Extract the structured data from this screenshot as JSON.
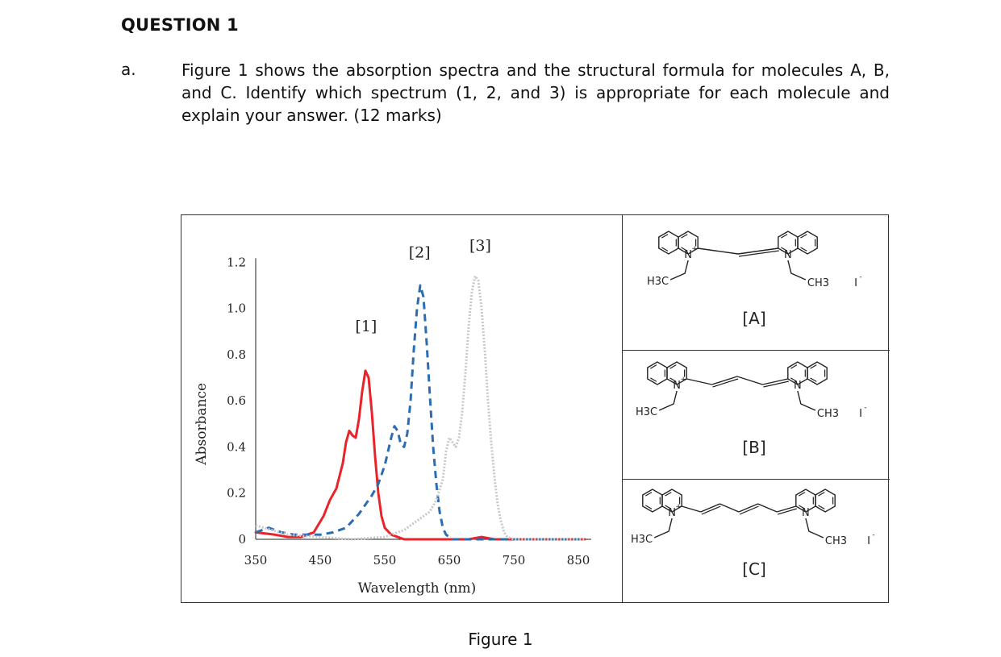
{
  "question": {
    "title": "QUESTION 1",
    "part_label": "a.",
    "text": "Figure 1 shows the absorption spectra and the structural formula for molecules A, B, and C. Identify which spectrum (1, 2, and 3) is appropriate for each molecule and explain your answer. (12 marks)"
  },
  "figure_caption": "Figure 1",
  "molecules": [
    {
      "label": "[A]",
      "left_sub": "H3C",
      "right_sub": "CH3",
      "counter_ion": "I",
      "n_label": "N",
      "charge": "+",
      "vinyl_units": 0
    },
    {
      "label": "[B]",
      "left_sub": "H3C",
      "right_sub": "CH3",
      "counter_ion": "I",
      "n_label": "N",
      "charge": "+",
      "vinyl_units": 1
    },
    {
      "label": "[C]",
      "left_sub": "H3C",
      "right_sub": "CH3",
      "counter_ion": "I",
      "n_label": "N",
      "charge": "+",
      "vinyl_units": 2
    }
  ],
  "chart_data": {
    "type": "line",
    "title": "",
    "xlabel": "Wavelength (nm)",
    "ylabel": "Absorbance",
    "xlim": [
      350,
      870
    ],
    "ylim": [
      0,
      1.25
    ],
    "x_ticks": [
      "350",
      "450",
      "550",
      "650",
      "750",
      "850"
    ],
    "y_ticks": [
      "0",
      "0.2",
      "0.4",
      "0.6",
      "0.8",
      "1.0",
      "1.2"
    ],
    "grid": false,
    "series": [
      {
        "name": "[1]",
        "color": "#e8242a",
        "style": "solid",
        "x": [
          350,
          380,
          400,
          420,
          440,
          455,
          465,
          475,
          485,
          490,
          495,
          500,
          505,
          510,
          515,
          520,
          525,
          530,
          535,
          540,
          545,
          550,
          560,
          570,
          580,
          600,
          650,
          680,
          700,
          720,
          750,
          800,
          860
        ],
        "y": [
          0.03,
          0.02,
          0.01,
          0.01,
          0.03,
          0.1,
          0.17,
          0.22,
          0.33,
          0.42,
          0.47,
          0.45,
          0.44,
          0.52,
          0.64,
          0.73,
          0.7,
          0.55,
          0.36,
          0.2,
          0.1,
          0.05,
          0.02,
          0.01,
          0.0,
          0.0,
          0.0,
          0.0,
          0.01,
          0.0,
          0.0,
          0.0,
          0.0
        ]
      },
      {
        "name": "[2]",
        "color": "#2b6cb2",
        "style": "dashed",
        "x": [
          350,
          370,
          390,
          410,
          430,
          450,
          470,
          490,
          510,
          520,
          530,
          540,
          550,
          560,
          565,
          570,
          575,
          580,
          585,
          590,
          595,
          600,
          605,
          610,
          615,
          620,
          625,
          630,
          635,
          640,
          645,
          650,
          655,
          660,
          670,
          700,
          750,
          800,
          860
        ],
        "y": [
          0.03,
          0.05,
          0.03,
          0.02,
          0.02,
          0.02,
          0.03,
          0.05,
          0.11,
          0.15,
          0.19,
          0.24,
          0.32,
          0.44,
          0.49,
          0.47,
          0.41,
          0.4,
          0.46,
          0.6,
          0.82,
          1.0,
          1.1,
          1.05,
          0.85,
          0.62,
          0.4,
          0.24,
          0.12,
          0.05,
          0.02,
          0.01,
          0.0,
          0.0,
          0.0,
          0.0,
          0.0,
          0.0,
          0.0
        ]
      },
      {
        "name": "[3]",
        "color": "#c8c8c8",
        "style": "dotted",
        "x": [
          350,
          400,
          450,
          500,
          550,
          580,
          600,
          620,
          630,
          640,
          645,
          650,
          655,
          660,
          665,
          670,
          675,
          680,
          685,
          690,
          695,
          700,
          705,
          710,
          715,
          720,
          725,
          730,
          735,
          740,
          750,
          760,
          780,
          800,
          860
        ],
        "y": [
          0.06,
          0.02,
          0.01,
          0.0,
          0.01,
          0.04,
          0.08,
          0.12,
          0.17,
          0.26,
          0.38,
          0.44,
          0.42,
          0.4,
          0.44,
          0.55,
          0.72,
          0.92,
          1.07,
          1.14,
          1.12,
          1.0,
          0.82,
          0.6,
          0.42,
          0.27,
          0.15,
          0.08,
          0.03,
          0.01,
          0.0,
          0.0,
          0.0,
          0.0,
          0.0
        ]
      }
    ],
    "annotations": [
      {
        "text": "[1]",
        "x": 521,
        "y": 0.9
      },
      {
        "text": "[2]",
        "x": 604,
        "y": 1.22
      },
      {
        "text": "[3]",
        "x": 698,
        "y": 1.25
      }
    ]
  }
}
